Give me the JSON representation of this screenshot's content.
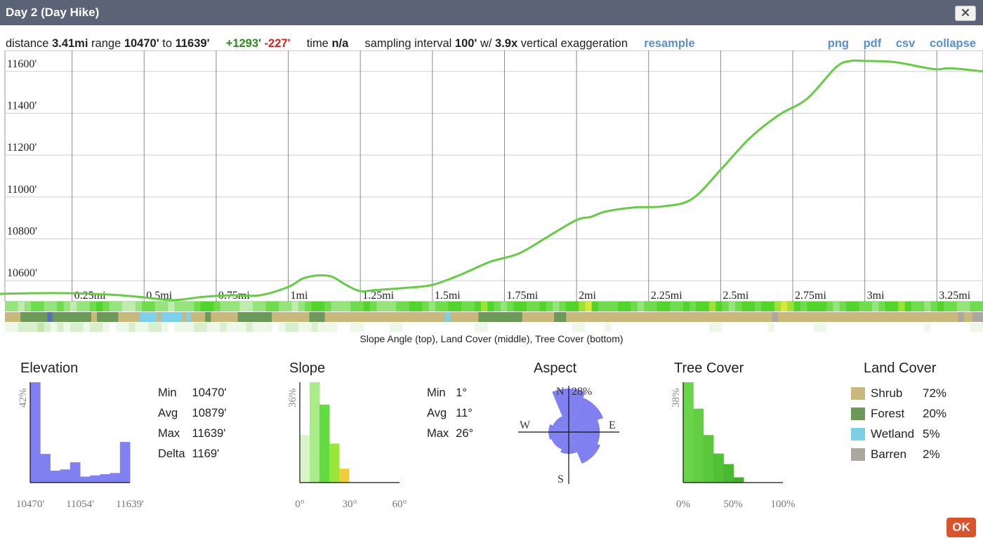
{
  "window": {
    "title": "Day 2 (Day Hike)",
    "close_label": "✕",
    "ok_label": "OK"
  },
  "summary": {
    "distance_label": "distance",
    "distance": "3.41mi",
    "range_label": "range",
    "range_min": "10470'",
    "range_to": "to",
    "range_max": "11639'",
    "gain": "+1293'",
    "loss": "-227'",
    "time_label": "time",
    "time": "n/a",
    "interval_label": "sampling interval",
    "interval": "100'",
    "with_label": "w/",
    "exaggeration": "3.9x",
    "exaggeration_label": "vertical exaggeration",
    "resample": "resample"
  },
  "export_links": [
    "png",
    "pdf",
    "csv",
    "collapse"
  ],
  "caption": "Slope Angle (top), Land Cover (middle), Tree Cover (bottom)",
  "chart_data": [
    {
      "type": "line",
      "xlim": [
        0,
        3.41
      ],
      "ylim": [
        10500,
        11700
      ],
      "x_ticks": [
        0.25,
        0.5,
        0.75,
        1,
        1.25,
        1.5,
        1.75,
        2,
        2.25,
        2.5,
        2.75,
        3,
        3.25
      ],
      "x_tick_labels": [
        "0.25mi",
        "0.5mi",
        "0.75mi",
        "1mi",
        "1.25mi",
        "1.5mi",
        "1.75mi",
        "2mi",
        "2.25mi",
        "2.5mi",
        "2.75mi",
        "3mi",
        "3.25mi"
      ],
      "y_ticks": [
        10600,
        10800,
        11000,
        11200,
        11400,
        11600
      ],
      "y_tick_labels": [
        "10600'",
        "10800'",
        "11000'",
        "11200'",
        "11400'",
        "11600'"
      ],
      "grid": true,
      "line_color": "#66cc44",
      "x": [
        0,
        0.1,
        0.25,
        0.4,
        0.5,
        0.6,
        0.7,
        0.8,
        0.9,
        1.0,
        1.05,
        1.1,
        1.15,
        1.2,
        1.25,
        1.3,
        1.4,
        1.5,
        1.6,
        1.7,
        1.8,
        1.9,
        2.0,
        2.05,
        2.1,
        2.2,
        2.3,
        2.4,
        2.5,
        2.6,
        2.7,
        2.8,
        2.9,
        2.95,
        3.0,
        3.1,
        3.2,
        3.25,
        3.3,
        3.41
      ],
      "y": [
        10537,
        10540,
        10540,
        10532,
        10520,
        10507,
        10522,
        10530,
        10530,
        10570,
        10610,
        10625,
        10620,
        10580,
        10550,
        10555,
        10565,
        10580,
        10630,
        10690,
        10730,
        10810,
        10890,
        10905,
        10930,
        10950,
        10955,
        10990,
        11130,
        11280,
        11390,
        11470,
        11620,
        11650,
        11650,
        11645,
        11620,
        11610,
        11615,
        11600
      ]
    },
    {
      "type": "bar",
      "title": "Elevation",
      "values": [
        42,
        12,
        5,
        5.5,
        8.5,
        2.5,
        3,
        3.5,
        4,
        17
      ],
      "bar_color": "#8080f0",
      "x_tick_labels": [
        "10470'",
        "11054'",
        "11639'"
      ],
      "y_label": "42%"
    },
    {
      "type": "bar",
      "title": "Slope",
      "values": [
        17,
        36,
        28,
        14,
        5
      ],
      "bar_colors": [
        "#d9f5c8",
        "#a8ed8a",
        "#62dc40",
        "#9ae638",
        "#f2cc3c"
      ],
      "x_tick_labels": [
        "0°",
        "30°",
        "60°"
      ],
      "y_label": "36%"
    },
    {
      "type": "pie",
      "title": "Aspect",
      "directions": [
        "N",
        "NE",
        "E",
        "SE",
        "S",
        "SW",
        "W",
        "NW"
      ],
      "values": [
        28,
        24,
        20,
        22,
        14,
        12,
        13,
        11
      ],
      "color": "#8080f0",
      "labels": {
        "n": "N",
        "s": "S",
        "e": "E",
        "w": "W",
        "max": "28%"
      }
    },
    {
      "type": "bar",
      "title": "Tree Cover",
      "values": [
        38,
        28,
        18,
        11,
        7,
        2
      ],
      "bar_colors": [
        "#6ad44a",
        "#62cf42",
        "#5ac83c",
        "#52c035",
        "#4ab830",
        "#44b02c"
      ],
      "x_tick_labels": [
        "0%",
        "50%",
        "100%"
      ],
      "y_label": "38%"
    }
  ],
  "elevation_stats": [
    {
      "label": "Min",
      "value": "10470'"
    },
    {
      "label": "Avg",
      "value": "10879'"
    },
    {
      "label": "Max",
      "value": "11639'"
    },
    {
      "label": "Delta",
      "value": "1169'"
    }
  ],
  "slope_stats": [
    {
      "label": "Min",
      "value": "1°"
    },
    {
      "label": "Avg",
      "value": "11°"
    },
    {
      "label": "Max",
      "value": "26°"
    }
  ],
  "land_cover": {
    "title": "Land Cover",
    "items": [
      {
        "name": "Shrub",
        "pct": "72%",
        "color": "#c8b87c"
      },
      {
        "name": "Forest",
        "pct": "20%",
        "color": "#6b9a58"
      },
      {
        "name": "Wetland",
        "pct": "5%",
        "color": "#7dd0e8"
      },
      {
        "name": "Barren",
        "pct": "2%",
        "color": "#aba79f"
      }
    ]
  },
  "slope_strip": {
    "colors": [
      "#c0ecb0",
      "#96e57c",
      "#6fdc4c",
      "#52d52a",
      "#9fe236",
      "#d6e83a"
    ],
    "values": [
      1,
      1,
      0,
      1,
      2,
      2,
      1,
      1,
      2,
      1,
      0,
      1,
      1,
      2,
      3,
      2,
      1,
      1,
      0,
      0,
      1,
      2,
      2,
      1,
      1,
      0,
      1,
      1,
      1,
      2,
      3,
      3,
      2,
      1,
      1,
      1,
      0,
      0,
      1,
      1,
      2,
      2,
      1,
      1,
      0,
      1,
      2,
      3,
      3,
      2,
      1,
      1,
      1,
      2,
      2,
      3,
      2,
      1,
      1,
      1,
      2,
      2,
      3,
      3,
      2,
      1,
      2,
      2,
      3,
      3,
      2,
      2,
      3,
      4,
      3,
      2,
      1,
      2,
      3,
      3,
      2,
      2,
      3,
      2,
      1,
      2,
      3,
      3,
      4,
      5,
      3,
      2,
      2,
      2,
      3,
      3,
      2,
      1,
      2,
      2,
      3,
      3,
      2,
      2,
      3,
      2,
      3,
      3,
      4,
      3,
      2,
      1,
      2,
      3,
      3,
      2,
      3,
      3,
      4,
      5,
      4,
      3,
      2,
      3,
      3,
      3,
      2,
      1,
      2,
      3,
      3,
      2,
      2,
      1,
      2,
      3,
      3,
      4,
      3,
      2,
      2,
      1,
      2,
      3,
      2,
      2,
      1,
      1,
      2,
      2
    ]
  },
  "land_strip": {
    "colors": {
      "s": "#c8b87c",
      "f": "#6b9a58",
      "w": "#7dd0e8",
      "b": "#aba79f",
      "d": "#5570b8"
    },
    "segments": [
      {
        "c": "s",
        "w": 22
      },
      {
        "c": "f",
        "w": 38
      },
      {
        "c": "d",
        "w": 7
      },
      {
        "c": "f",
        "w": 55
      },
      {
        "c": "s",
        "w": 8
      },
      {
        "c": "f",
        "w": 30
      },
      {
        "c": "s",
        "w": 30
      },
      {
        "c": "w",
        "w": 25
      },
      {
        "c": "s",
        "w": 6
      },
      {
        "c": "w",
        "w": 30
      },
      {
        "c": "s",
        "w": 5
      },
      {
        "c": "w",
        "w": 7
      },
      {
        "c": "s",
        "w": 20
      },
      {
        "c": "f",
        "w": 8
      },
      {
        "c": "s",
        "w": 38
      },
      {
        "c": "f",
        "w": 48
      },
      {
        "c": "s",
        "w": 53
      },
      {
        "c": "f",
        "w": 22
      },
      {
        "c": "s",
        "w": 170
      },
      {
        "c": "w",
        "w": 7
      },
      {
        "c": "s",
        "w": 40
      },
      {
        "c": "f",
        "w": 62
      },
      {
        "c": "s",
        "w": 45
      },
      {
        "c": "f",
        "w": 17
      },
      {
        "c": "s",
        "w": 291
      },
      {
        "c": "b",
        "w": 8
      },
      {
        "c": "s",
        "w": 255
      },
      {
        "c": "b",
        "w": 8
      },
      {
        "c": "s",
        "w": 12
      },
      {
        "c": "b",
        "w": 15
      }
    ]
  },
  "tree_strip": {
    "colors": [
      "#ffffff",
      "#eef8e8",
      "#d8efcc",
      "#bfe5ac"
    ],
    "values": [
      1,
      1,
      2,
      2,
      2,
      3,
      2,
      1,
      2,
      1,
      2,
      2,
      1,
      2,
      2,
      1,
      0,
      1,
      1,
      2,
      1,
      1,
      2,
      2,
      1,
      0,
      1,
      1,
      1,
      2,
      2,
      1,
      1,
      2,
      1,
      1,
      1,
      2,
      1,
      1,
      1,
      0,
      1,
      2,
      2,
      1,
      1,
      2,
      1,
      1,
      1,
      0,
      0,
      1,
      1,
      0,
      0,
      0,
      0,
      1,
      1,
      0,
      0,
      0,
      0,
      0,
      0,
      0,
      0,
      0,
      0,
      0,
      1,
      1,
      0,
      0,
      0,
      0,
      0,
      0,
      0,
      0,
      0,
      0,
      0,
      0,
      0,
      1,
      1,
      0,
      0,
      0,
      1,
      0,
      0,
      0,
      0,
      0,
      0,
      0,
      0,
      0,
      0,
      0,
      0,
      0,
      0,
      0,
      1,
      1,
      0,
      0,
      0,
      0,
      0,
      0,
      0,
      1,
      0,
      0,
      0,
      0,
      0,
      0,
      1,
      1,
      0,
      0,
      0,
      0,
      0,
      0,
      0,
      0,
      0,
      0,
      0,
      0,
      0,
      0,
      0,
      1,
      0,
      0,
      0,
      0,
      0,
      0,
      1,
      1
    ]
  }
}
